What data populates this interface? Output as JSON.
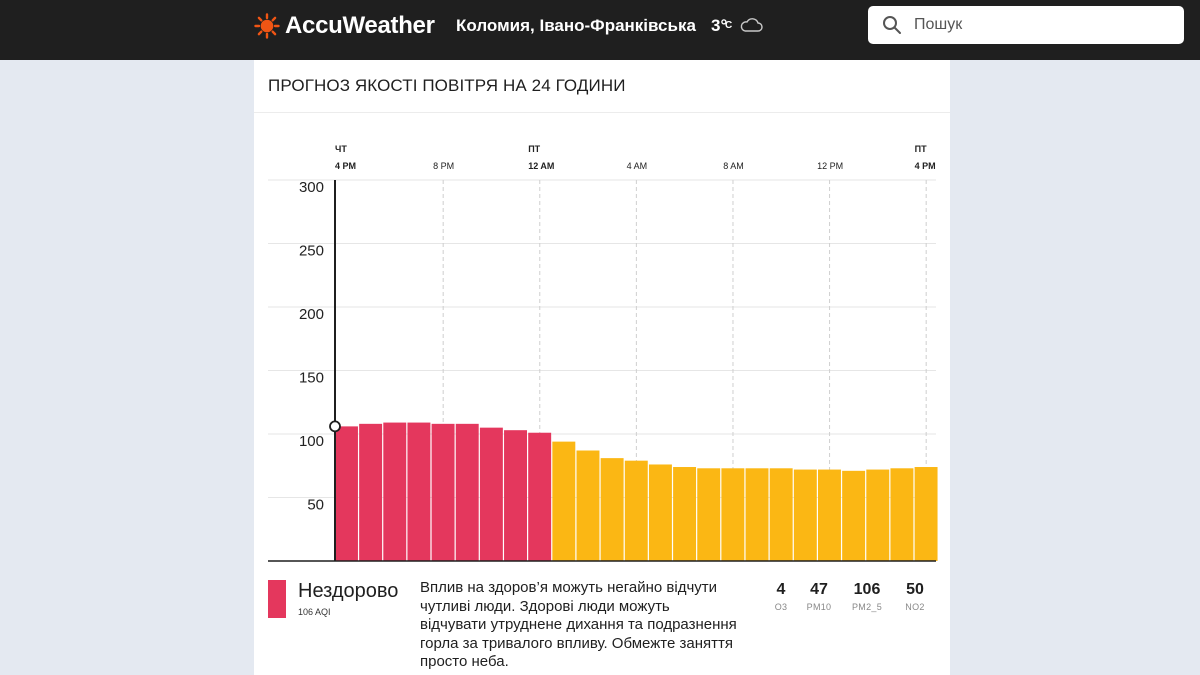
{
  "header": {
    "brand": "AccuWeather",
    "location": "Коломия, Івано-Франківська",
    "temperature": "3°",
    "temperature_unit": "C",
    "weather_icon": "cloud-icon",
    "search_placeholder": "Пошук"
  },
  "card": {
    "title": "ПРОГНОЗ ЯКОСТІ ПОВІТРЯ НА 24 ГОДИНИ"
  },
  "chart_data": {
    "type": "bar",
    "title": "ПРОГНОЗ ЯКОСТІ ПОВІТРЯ НА 24 ГОДИНИ",
    "ylim": [
      0,
      300
    ],
    "y_ticks": [
      50,
      100,
      150,
      200,
      250,
      300
    ],
    "grid": true,
    "x_ticks": [
      {
        "hour_index": 0,
        "day": "ЧТ",
        "time": "4 PM",
        "bold": true
      },
      {
        "hour_index": 4,
        "day": "",
        "time": "8 PM",
        "bold": false
      },
      {
        "hour_index": 8,
        "day": "ПТ",
        "time": "12 AM",
        "bold": true
      },
      {
        "hour_index": 12,
        "day": "",
        "time": "4 AM",
        "bold": false
      },
      {
        "hour_index": 16,
        "day": "",
        "time": "8 AM",
        "bold": false
      },
      {
        "hour_index": 20,
        "day": "",
        "time": "12 PM",
        "bold": false
      },
      {
        "hour_index": 24,
        "day": "ПТ",
        "time": "4 PM",
        "bold": true
      }
    ],
    "values": [
      106,
      108,
      109,
      109,
      108,
      108,
      105,
      103,
      101,
      94,
      87,
      81,
      79,
      76,
      74,
      73,
      73,
      73,
      73,
      72,
      72,
      71,
      72,
      73,
      74
    ],
    "current_value": 106,
    "colors": {
      "unhealthy": "#e4375d",
      "moderate": "#fbb714"
    },
    "unhealthy_threshold": 100
  },
  "summary": {
    "category": "Нездорово",
    "aqi_label": "106 AQI",
    "color": "#e4375d",
    "description": "Вплив на здоров’я можуть негайно відчути чутливі люди. Здорові люди можуть відчувати утруднене дихання та подразнення горла за тривалого впливу. Обмежте заняття просто неба.",
    "pollutants": [
      {
        "value": "4",
        "name": "O3"
      },
      {
        "value": "47",
        "name": "PM10"
      },
      {
        "value": "106",
        "name": "PM2_5"
      },
      {
        "value": "50",
        "name": "NO2"
      }
    ]
  }
}
